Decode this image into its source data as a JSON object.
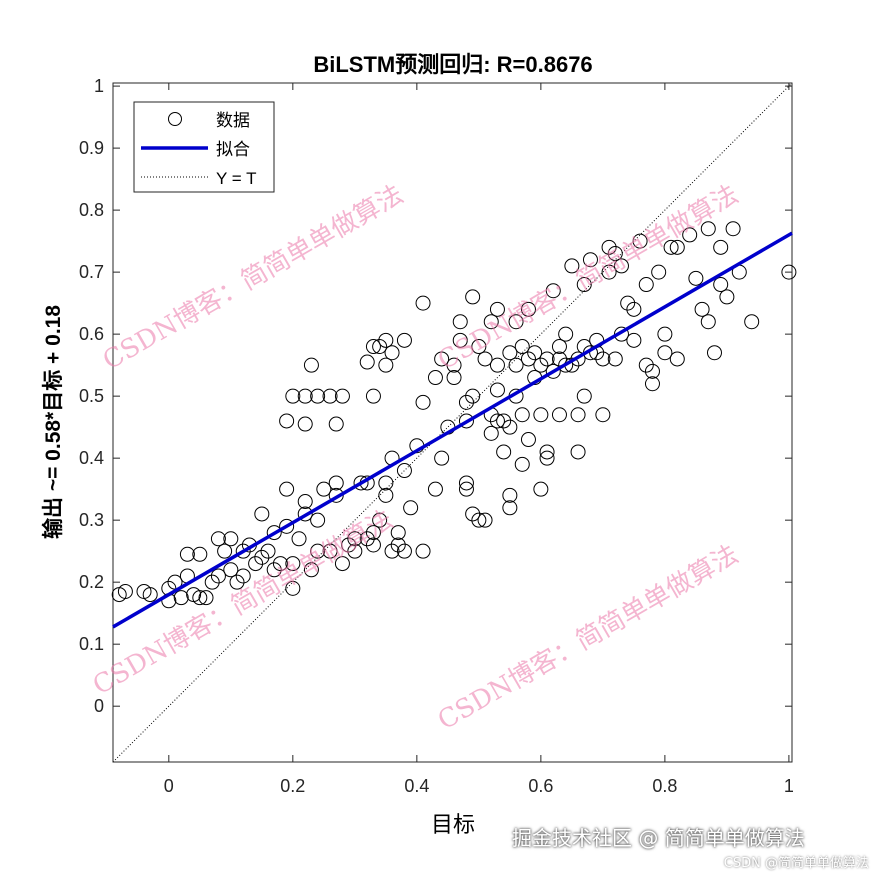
{
  "chart_data": {
    "type": "scatter",
    "title": "BiLSTM预测回归: R=0.8676",
    "xlabel": "目标",
    "ylabel": "输出 ~= 0.58*目标 + 0.18",
    "xlim": [
      -0.09,
      1.005
    ],
    "ylim": [
      -0.09,
      1.005
    ],
    "xticks": [
      "0",
      "0.2",
      "0.4",
      "0.6",
      "0.8",
      "1"
    ],
    "xtick_values": [
      0,
      0.2,
      0.4,
      0.6,
      0.8,
      1
    ],
    "yticks": [
      "0",
      "0.1",
      "0.2",
      "0.3",
      "0.4",
      "0.5",
      "0.6",
      "0.7",
      "0.8",
      "0.9",
      "1"
    ],
    "ytick_values": [
      0,
      0.1,
      0.2,
      0.3,
      0.4,
      0.5,
      0.6,
      0.7,
      0.8,
      0.9,
      1
    ],
    "grid": false,
    "legend": {
      "placement": "top-left",
      "entries": [
        "数据",
        "拟合",
        "Y = T"
      ]
    },
    "fit": {
      "slope": 0.58,
      "intercept": 0.18,
      "color": "#0000CC"
    },
    "identity_line": true,
    "points": [
      [
        -0.08,
        0.18
      ],
      [
        -0.07,
        0.185
      ],
      [
        -0.04,
        0.185
      ],
      [
        -0.03,
        0.18
      ],
      [
        0,
        0.17
      ],
      [
        0,
        0.19
      ],
      [
        0.01,
        0.2
      ],
      [
        0.02,
        0.175
      ],
      [
        0.03,
        0.21
      ],
      [
        0.03,
        0.245
      ],
      [
        0.04,
        0.18
      ],
      [
        0.05,
        0.175
      ],
      [
        0.05,
        0.245
      ],
      [
        0.06,
        0.175
      ],
      [
        0.07,
        0.2
      ],
      [
        0.08,
        0.27
      ],
      [
        0.08,
        0.21
      ],
      [
        0.09,
        0.25
      ],
      [
        0.1,
        0.27
      ],
      [
        0.1,
        0.22
      ],
      [
        0.11,
        0.2
      ],
      [
        0.12,
        0.21
      ],
      [
        0.12,
        0.25
      ],
      [
        0.13,
        0.26
      ],
      [
        0.14,
        0.23
      ],
      [
        0.15,
        0.24
      ],
      [
        0.15,
        0.31
      ],
      [
        0.16,
        0.25
      ],
      [
        0.17,
        0.22
      ],
      [
        0.17,
        0.28
      ],
      [
        0.18,
        0.23
      ],
      [
        0.19,
        0.35
      ],
      [
        0.19,
        0.29
      ],
      [
        0.2,
        0.23
      ],
      [
        0.2,
        0.19
      ],
      [
        0.21,
        0.27
      ],
      [
        0.22,
        0.31
      ],
      [
        0.22,
        0.33
      ],
      [
        0.23,
        0.22
      ],
      [
        0.24,
        0.25
      ],
      [
        0.24,
        0.3
      ],
      [
        0.25,
        0.35
      ],
      [
        0.26,
        0.25
      ],
      [
        0.27,
        0.36
      ],
      [
        0.27,
        0.34
      ],
      [
        0.28,
        0.23
      ],
      [
        0.29,
        0.26
      ],
      [
        0.3,
        0.25
      ],
      [
        0.31,
        0.36
      ],
      [
        0.32,
        0.27
      ],
      [
        0.33,
        0.28
      ],
      [
        0.33,
        0.26
      ],
      [
        0.34,
        0.3
      ],
      [
        0.35,
        0.34
      ],
      [
        0.36,
        0.25
      ],
      [
        0.37,
        0.26
      ],
      [
        0.37,
        0.28
      ],
      [
        0.38,
        0.25
      ],
      [
        0.39,
        0.32
      ],
      [
        0.41,
        0.25
      ],
      [
        0.3,
        0.27
      ],
      [
        0.35,
        0.36
      ],
      [
        0.19,
        0.46
      ],
      [
        0.2,
        0.5
      ],
      [
        0.22,
        0.5
      ],
      [
        0.22,
        0.455
      ],
      [
        0.23,
        0.55
      ],
      [
        0.24,
        0.5
      ],
      [
        0.26,
        0.5
      ],
      [
        0.27,
        0.455
      ],
      [
        0.28,
        0.5
      ],
      [
        0.32,
        0.555
      ],
      [
        0.33,
        0.5
      ],
      [
        0.33,
        0.58
      ],
      [
        0.34,
        0.58
      ],
      [
        0.35,
        0.59
      ],
      [
        0.35,
        0.55
      ],
      [
        0.36,
        0.57
      ],
      [
        0.38,
        0.59
      ],
      [
        0.41,
        0.65
      ],
      [
        0.41,
        0.49
      ],
      [
        0.4,
        0.42
      ],
      [
        0.38,
        0.38
      ],
      [
        0.36,
        0.4
      ],
      [
        0.32,
        0.36
      ],
      [
        0.44,
        0.4
      ],
      [
        0.45,
        0.45
      ],
      [
        0.46,
        0.53
      ],
      [
        0.46,
        0.55
      ],
      [
        0.47,
        0.62
      ],
      [
        0.47,
        0.59
      ],
      [
        0.48,
        0.46
      ],
      [
        0.48,
        0.49
      ],
      [
        0.49,
        0.66
      ],
      [
        0.49,
        0.5
      ],
      [
        0.5,
        0.3
      ],
      [
        0.51,
        0.3
      ],
      [
        0.48,
        0.35
      ],
      [
        0.48,
        0.36
      ],
      [
        0.49,
        0.31
      ],
      [
        0.51,
        0.56
      ],
      [
        0.52,
        0.44
      ],
      [
        0.52,
        0.47
      ],
      [
        0.52,
        0.62
      ],
      [
        0.53,
        0.64
      ],
      [
        0.53,
        0.46
      ],
      [
        0.53,
        0.51
      ],
      [
        0.54,
        0.46
      ],
      [
        0.54,
        0.41
      ],
      [
        0.55,
        0.45
      ],
      [
        0.55,
        0.32
      ],
      [
        0.55,
        0.34
      ],
      [
        0.56,
        0.62
      ],
      [
        0.56,
        0.55
      ],
      [
        0.56,
        0.5
      ],
      [
        0.57,
        0.47
      ],
      [
        0.57,
        0.39
      ],
      [
        0.58,
        0.64
      ],
      [
        0.58,
        0.56
      ],
      [
        0.58,
        0.43
      ],
      [
        0.59,
        0.53
      ],
      [
        0.59,
        0.57
      ],
      [
        0.6,
        0.35
      ],
      [
        0.6,
        0.47
      ],
      [
        0.6,
        0.55
      ],
      [
        0.61,
        0.41
      ],
      [
        0.61,
        0.4
      ],
      [
        0.61,
        0.56
      ],
      [
        0.62,
        0.67
      ],
      [
        0.62,
        0.54
      ],
      [
        0.63,
        0.58
      ],
      [
        0.63,
        0.47
      ],
      [
        0.64,
        0.55
      ],
      [
        0.64,
        0.6
      ],
      [
        0.65,
        0.71
      ],
      [
        0.65,
        0.55
      ],
      [
        0.66,
        0.56
      ],
      [
        0.66,
        0.47
      ],
      [
        0.66,
        0.41
      ],
      [
        0.67,
        0.68
      ],
      [
        0.67,
        0.5
      ],
      [
        0.68,
        0.57
      ],
      [
        0.68,
        0.72
      ],
      [
        0.69,
        0.59
      ],
      [
        0.7,
        0.56
      ],
      [
        0.7,
        0.47
      ],
      [
        0.71,
        0.74
      ],
      [
        0.71,
        0.7
      ],
      [
        0.72,
        0.73
      ],
      [
        0.72,
        0.56
      ],
      [
        0.73,
        0.71
      ],
      [
        0.74,
        0.65
      ],
      [
        0.75,
        0.64
      ],
      [
        0.76,
        0.75
      ],
      [
        0.77,
        0.68
      ],
      [
        0.77,
        0.55
      ],
      [
        0.78,
        0.52
      ],
      [
        0.78,
        0.54
      ],
      [
        0.79,
        0.7
      ],
      [
        0.8,
        0.6
      ],
      [
        0.8,
        0.57
      ],
      [
        0.81,
        0.74
      ],
      [
        0.82,
        0.74
      ],
      [
        0.82,
        0.56
      ],
      [
        0.84,
        0.76
      ],
      [
        0.85,
        0.69
      ],
      [
        0.86,
        0.64
      ],
      [
        0.87,
        0.77
      ],
      [
        0.87,
        0.62
      ],
      [
        0.88,
        0.57
      ],
      [
        0.89,
        0.68
      ],
      [
        0.89,
        0.74
      ],
      [
        0.9,
        0.66
      ],
      [
        0.91,
        0.77
      ],
      [
        0.92,
        0.7
      ],
      [
        0.94,
        0.62
      ],
      [
        1.0,
        0.7
      ],
      [
        0.73,
        0.6
      ],
      [
        0.75,
        0.59
      ],
      [
        0.69,
        0.57
      ],
      [
        0.67,
        0.58
      ],
      [
        0.63,
        0.56
      ],
      [
        0.57,
        0.58
      ],
      [
        0.55,
        0.57
      ],
      [
        0.53,
        0.55
      ],
      [
        0.5,
        0.58
      ],
      [
        0.44,
        0.56
      ],
      [
        0.43,
        0.53
      ],
      [
        0.43,
        0.35
      ]
    ]
  },
  "watermark": {
    "text": "CSDN博客：简简单单做算法",
    "footer_main": "掘金技术社区 @ 简简单单做算法",
    "footer_small": "CSDN @简简单单做算法"
  }
}
